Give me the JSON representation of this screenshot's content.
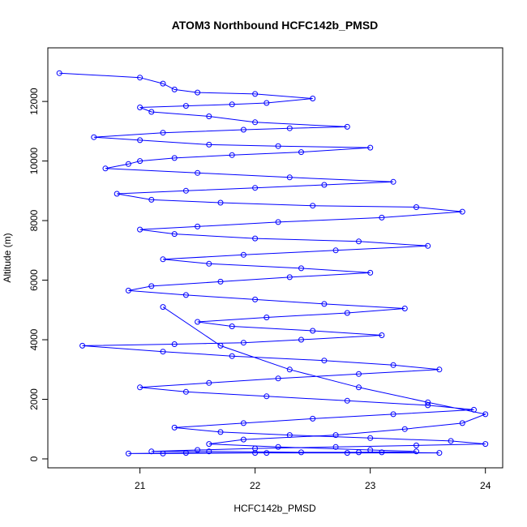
{
  "chart_data": {
    "type": "line",
    "title": "ATOM3 Northbound HCFC142b_PMSD",
    "xlabel": "HCFC142b_PMSD",
    "ylabel": "Altitude (m)",
    "xlim": [
      20.2,
      24.15
    ],
    "ylim": [
      -300,
      13800
    ],
    "xticks": [
      21,
      22,
      23,
      24
    ],
    "yticks": [
      0,
      2000,
      4000,
      6000,
      8000,
      10000,
      12000
    ],
    "grid": false,
    "marker": "open-circle",
    "series_color": "#0000ff",
    "series": [
      {
        "x": [
          20.3,
          21.0,
          21.2,
          21.3,
          21.5,
          22.0,
          22.5,
          22.1,
          21.8,
          21.4,
          21.0,
          21.1,
          21.6,
          22.0,
          22.8,
          22.3,
          21.9,
          21.2,
          20.6,
          21.0,
          21.6,
          22.2,
          23.0,
          22.4,
          21.8,
          21.3,
          21.0,
          20.9,
          20.7,
          21.5,
          22.3,
          23.2,
          22.6,
          22.0,
          21.4,
          20.8,
          21.1,
          21.7,
          22.5,
          23.4,
          23.8,
          23.1,
          22.2,
          21.5,
          21.0,
          21.3,
          22.0,
          22.9,
          23.5,
          22.7,
          21.9,
          21.2,
          21.6,
          22.4,
          23.0,
          22.3,
          21.7,
          21.1,
          20.9,
          21.4,
          22.0,
          22.6,
          23.3,
          22.8,
          22.1,
          21.5,
          21.8,
          22.5,
          23.1,
          22.4,
          21.9,
          21.3,
          20.5,
          21.2,
          21.8,
          22.6,
          23.2,
          23.6,
          22.9,
          22.2,
          21.6,
          21.0,
          21.4,
          22.1,
          22.8,
          23.5,
          23.9,
          23.2,
          22.5,
          21.9,
          21.3,
          21.7,
          22.3,
          23.0,
          23.7,
          24.0,
          23.4,
          22.7,
          22.0,
          21.5,
          21.1,
          21.6,
          22.4,
          23.1,
          23.6,
          22.8,
          22.1,
          21.4,
          20.9,
          21.2,
          22.0,
          22.9,
          23.4,
          23.0,
          22.2,
          21.6,
          21.9,
          22.7,
          23.3,
          23.8,
          24.0,
          23.5,
          22.9,
          22.3,
          21.7,
          21.2
        ],
        "y": [
          12950,
          12800,
          12600,
          12400,
          12300,
          12250,
          12100,
          11950,
          11900,
          11850,
          11800,
          11650,
          11500,
          11300,
          11150,
          11100,
          11050,
          10950,
          10800,
          10700,
          10550,
          10500,
          10450,
          10300,
          10200,
          10100,
          10000,
          9900,
          9750,
          9600,
          9450,
          9300,
          9200,
          9100,
          9000,
          8900,
          8700,
          8600,
          8500,
          8450,
          8300,
          8100,
          7950,
          7800,
          7700,
          7550,
          7400,
          7300,
          7150,
          7000,
          6850,
          6700,
          6550,
          6400,
          6250,
          6100,
          5950,
          5800,
          5650,
          5500,
          5350,
          5200,
          5050,
          4900,
          4750,
          4600,
          4450,
          4300,
          4150,
          4000,
          3900,
          3850,
          3800,
          3600,
          3450,
          3300,
          3150,
          3000,
          2850,
          2700,
          2550,
          2400,
          2250,
          2100,
          1950,
          1800,
          1650,
          1500,
          1350,
          1200,
          1050,
          900,
          800,
          700,
          600,
          500,
          450,
          400,
          350,
          300,
          250,
          250,
          220,
          220,
          200,
          200,
          200,
          200,
          180,
          180,
          200,
          220,
          250,
          300,
          400,
          500,
          650,
          800,
          1000,
          1200,
          1500,
          1900,
          2400,
          3000,
          3800,
          5100
        ]
      }
    ]
  }
}
